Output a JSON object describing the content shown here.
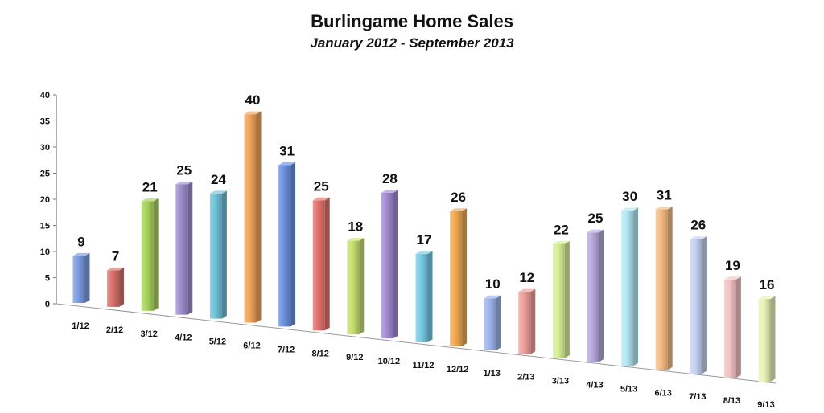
{
  "chart_data": {
    "type": "bar",
    "title": "Burlingame Home Sales",
    "subtitle": "January 2012 - September 2013",
    "xlabel": "",
    "ylabel": "",
    "ylim": [
      0,
      40
    ],
    "yticks": [
      0,
      5,
      10,
      15,
      20,
      25,
      30,
      35,
      40
    ],
    "grid": false,
    "legend": "none",
    "categories": [
      "1/12",
      "2/12",
      "3/12",
      "4/12",
      "5/12",
      "6/12",
      "7/12",
      "8/12",
      "9/12",
      "10/12",
      "11/12",
      "12/12",
      "1/13",
      "2/13",
      "3/13",
      "4/13",
      "5/13",
      "6/13",
      "7/13",
      "8/13",
      "9/13"
    ],
    "values": [
      9,
      7,
      21,
      25,
      24,
      40,
      31,
      25,
      18,
      28,
      17,
      26,
      10,
      12,
      22,
      25,
      30,
      31,
      26,
      19,
      16
    ],
    "colors": [
      "#7b9be0",
      "#d9706b",
      "#a7d35a",
      "#9d8ccc",
      "#6ec1d8",
      "#f1a45a",
      "#6b90df",
      "#e2716c",
      "#c6e06d",
      "#a28ad2",
      "#77cbe4",
      "#f3a84f",
      "#9bb4ec",
      "#ee9e9c",
      "#d6ef95",
      "#b6a8dc",
      "#b3e7f3",
      "#f6bc82",
      "#c6d2f3",
      "#f2c2c4",
      "#e8f4b7"
    ]
  }
}
